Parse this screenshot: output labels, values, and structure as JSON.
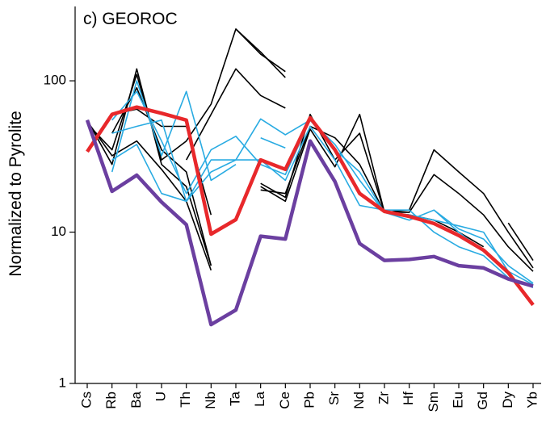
{
  "chart_data": {
    "type": "line",
    "annotation": "c) GEOROC",
    "y_label": "Normalized to Pyrolite",
    "categories": [
      "Cs",
      "Rb",
      "Ba",
      "U",
      "Th",
      "Nb",
      "Ta",
      "La",
      "Ce",
      "Pb",
      "Sr",
      "Nd",
      "Zr",
      "Hf",
      "Sm",
      "Eu",
      "Gd",
      "Dy",
      "Yb"
    ],
    "log_y": true,
    "ylim": [
      1,
      310
    ],
    "yticks": [
      1,
      10,
      100
    ],
    "series": [
      {
        "color": "#000000",
        "linewidth": 1.6,
        "values": [
          55,
          28,
          120,
          28,
          20,
          6,
          null,
          null,
          null,
          null,
          null,
          null,
          null,
          null,
          null,
          null,
          null,
          null,
          null
        ]
      },
      {
        "color": "#000000",
        "linewidth": 1.6,
        "values": [
          52,
          35,
          110,
          30,
          40,
          70,
          220,
          150,
          115,
          null,
          null,
          null,
          null,
          null,
          null,
          null,
          null,
          null,
          null
        ]
      },
      {
        "color": "#000000",
        "linewidth": 1.6,
        "values": [
          null,
          null,
          null,
          null,
          30,
          60,
          120,
          80,
          66,
          null,
          null,
          null,
          null,
          null,
          null,
          null,
          null,
          null,
          null
        ]
      },
      {
        "color": "#000000",
        "linewidth": 1.6,
        "values": [
          null,
          null,
          null,
          null,
          null,
          null,
          220,
          155,
          105,
          null,
          null,
          null,
          null,
          null,
          null,
          null,
          null,
          null,
          null
        ]
      },
      {
        "color": "#000000",
        "linewidth": 1.6,
        "values": [
          54,
          32,
          40,
          26,
          16,
          5.6,
          null,
          null,
          null,
          null,
          null,
          null,
          null,
          null,
          null,
          null,
          null,
          null,
          null
        ]
      },
      {
        "color": "#000000",
        "linewidth": 1.6,
        "values": [
          null,
          60,
          65,
          50,
          50,
          13,
          null,
          null,
          null,
          null,
          null,
          null,
          null,
          null,
          null,
          null,
          null,
          null,
          null
        ]
      },
      {
        "color": "#000000",
        "linewidth": 1.6,
        "values": [
          null,
          45,
          90,
          35,
          25,
          6,
          null,
          null,
          null,
          null,
          null,
          null,
          null,
          null,
          null,
          null,
          null,
          null,
          null
        ]
      },
      {
        "color": "#000000",
        "linewidth": 1.6,
        "values": [
          null,
          null,
          null,
          null,
          null,
          null,
          null,
          20,
          16,
          48,
          27,
          60,
          13.5,
          14,
          35,
          25,
          18,
          10,
          5.8
        ]
      },
      {
        "color": "#000000",
        "linewidth": 1.6,
        "values": [
          null,
          null,
          null,
          null,
          null,
          null,
          null,
          21,
          17,
          60,
          30,
          45,
          13.5,
          13.5,
          24,
          18,
          13,
          8,
          5.5
        ]
      },
      {
        "color": "#000000",
        "linewidth": 1.6,
        "values": [
          null,
          null,
          null,
          null,
          null,
          null,
          null,
          19,
          18,
          50,
          42,
          28,
          13.5,
          13,
          12,
          10,
          8,
          null,
          null
        ]
      },
      {
        "color": "#000000",
        "linewidth": 1.6,
        "values": [
          null,
          null,
          null,
          null,
          null,
          null,
          null,
          null,
          null,
          null,
          null,
          null,
          null,
          null,
          null,
          null,
          null,
          11.5,
          6.5
        ]
      },
      {
        "color": "#29abe2",
        "linewidth": 1.6,
        "values": [
          null,
          25,
          100,
          32,
          85,
          22,
          28,
          null,
          null,
          null,
          null,
          null,
          null,
          null,
          null,
          null,
          null,
          null,
          null
        ]
      },
      {
        "color": "#29abe2",
        "linewidth": 1.6,
        "values": [
          null,
          55,
          85,
          40,
          18,
          35,
          43,
          28,
          24,
          55,
          35,
          25,
          13.5,
          13,
          12,
          11,
          10,
          5.5,
          4.5
        ]
      },
      {
        "color": "#29abe2",
        "linewidth": 1.6,
        "values": [
          null,
          45,
          50,
          55,
          16,
          25,
          30,
          56,
          44,
          55,
          38,
          22,
          13.5,
          12,
          14,
          10.5,
          9,
          6,
          4.6
        ]
      },
      {
        "color": "#29abe2",
        "linewidth": 1.6,
        "values": [
          null,
          30,
          38,
          18,
          16,
          30,
          30,
          30,
          22,
          50,
          30,
          15,
          14,
          14,
          10,
          8,
          7,
          5,
          4.3
        ]
      },
      {
        "color": "#29abe2",
        "linewidth": 1.6,
        "values": [
          null,
          null,
          null,
          null,
          null,
          null,
          null,
          42,
          36,
          null,
          null,
          null,
          null,
          null,
          14,
          10,
          7.5,
          null,
          null
        ]
      },
      {
        "color": "#e8282b",
        "linewidth": 4.5,
        "values": [
          34,
          60,
          67,
          61,
          55,
          9.7,
          12.1,
          30,
          26,
          57,
          35,
          18,
          13.7,
          12.7,
          11.4,
          9.5,
          7.6,
          5.4,
          3.3
        ]
      },
      {
        "color": "#6b3fa0",
        "linewidth": 4.5,
        "values": [
          55,
          18.6,
          23.8,
          15.8,
          11.2,
          2.45,
          3.06,
          9.4,
          9.0,
          40,
          21.6,
          8.4,
          6.5,
          6.6,
          6.9,
          6.0,
          5.8,
          4.9,
          4.4
        ]
      }
    ]
  }
}
